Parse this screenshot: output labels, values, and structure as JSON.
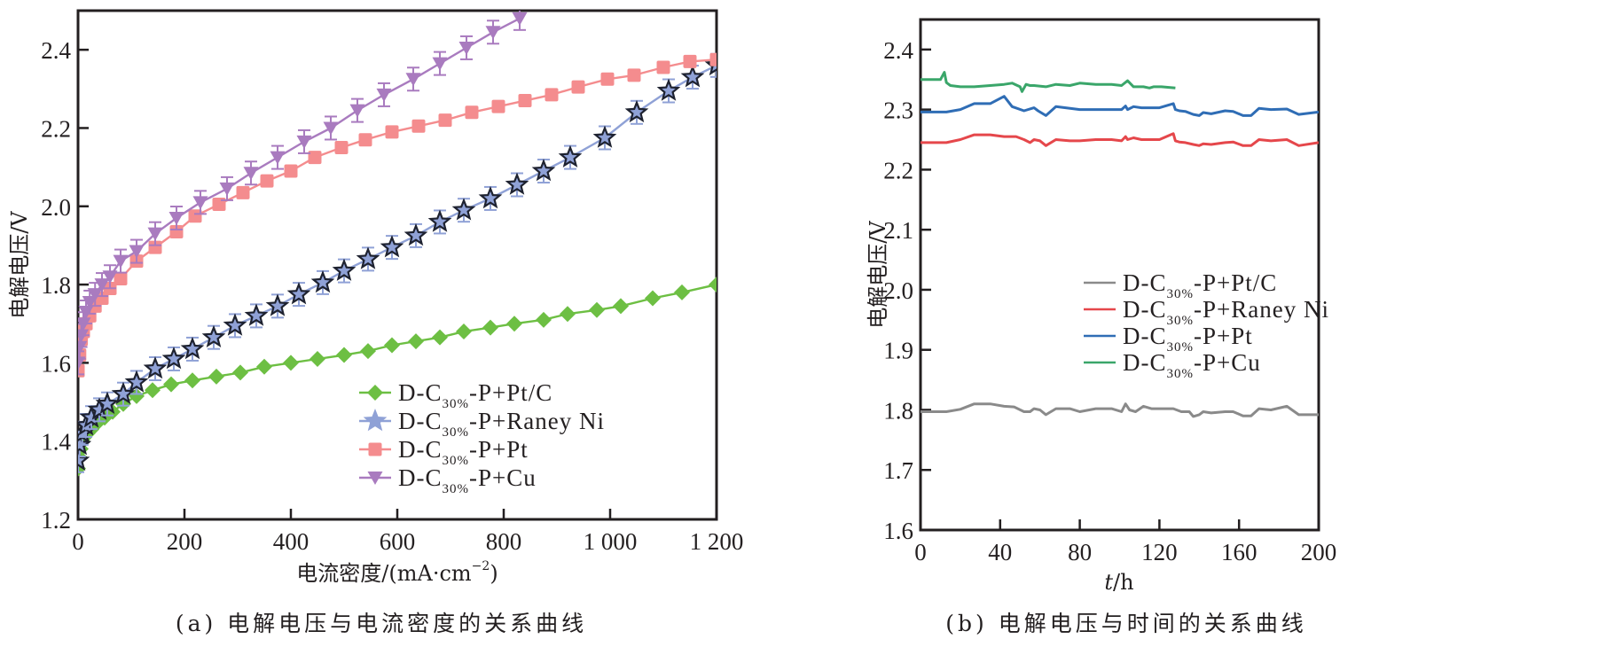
{
  "chart_data": [
    {
      "type": "line",
      "panel": "a",
      "caption": "(a) 电解电压与电流密度的关系曲线",
      "xlabel": "电流密度/(mA·cm⁻²)",
      "xlabel_parts": {
        "main": "电流密度/(mA·cm",
        "sup": "−2",
        "close": ")"
      },
      "ylabel": "电解电压/V",
      "xlim": [
        0,
        1200
      ],
      "ylim": [
        1.2,
        2.5
      ],
      "xticks": [
        0,
        200,
        400,
        600,
        800,
        1000,
        1200
      ],
      "xtick_labels": [
        "0",
        "200",
        "400",
        "600",
        "800",
        "1 000",
        "1 200"
      ],
      "yticks": [
        1.2,
        1.4,
        1.6,
        1.8,
        2.0,
        2.2,
        2.4
      ],
      "ytick_labels": [
        "1.2",
        "1.4",
        "1.6",
        "1.8",
        "2.0",
        "2.2",
        "2.4"
      ],
      "grid": false,
      "legend_position": "bottom-right",
      "series": [
        {
          "name": "D-C30%-P+Pt/C",
          "label_parts": {
            "pre": "D-C",
            "sub": "30%",
            "post": "-P+Pt/C"
          },
          "color": "#6dbf43",
          "marker": "diamond",
          "x": [
            0,
            2,
            5,
            8,
            12,
            18,
            25,
            35,
            50,
            65,
            85,
            110,
            140,
            175,
            215,
            260,
            305,
            350,
            400,
            450,
            500,
            545,
            590,
            635,
            680,
            725,
            775,
            820,
            875,
            920,
            975,
            1020,
            1080,
            1135,
            1200
          ],
          "y": [
            1.33,
            1.36,
            1.38,
            1.4,
            1.41,
            1.42,
            1.43,
            1.445,
            1.46,
            1.475,
            1.495,
            1.515,
            1.53,
            1.545,
            1.555,
            1.565,
            1.575,
            1.59,
            1.6,
            1.61,
            1.62,
            1.63,
            1.645,
            1.655,
            1.665,
            1.68,
            1.69,
            1.7,
            1.71,
            1.725,
            1.735,
            1.745,
            1.765,
            1.78,
            1.8
          ]
        },
        {
          "name": "D-C30%-P+Raney Ni",
          "label_parts": {
            "pre": "D-C",
            "sub": "30%",
            "post": "-P+Raney Ni"
          },
          "color": "#8fa1d6",
          "marker": "star",
          "marker_edge": "#1e2230",
          "x": [
            0,
            3,
            8,
            15,
            25,
            40,
            55,
            85,
            110,
            145,
            180,
            215,
            255,
            295,
            335,
            375,
            415,
            460,
            500,
            545,
            590,
            635,
            680,
            725,
            775,
            825,
            875,
            925,
            990,
            1050,
            1110,
            1155,
            1200
          ],
          "y": [
            1.35,
            1.39,
            1.42,
            1.44,
            1.46,
            1.48,
            1.495,
            1.52,
            1.55,
            1.585,
            1.61,
            1.635,
            1.665,
            1.695,
            1.72,
            1.745,
            1.775,
            1.805,
            1.835,
            1.865,
            1.895,
            1.925,
            1.96,
            1.99,
            2.02,
            2.055,
            2.09,
            2.125,
            2.175,
            2.24,
            2.295,
            2.33,
            2.36
          ]
        },
        {
          "name": "D-C30%-P+Pt",
          "label_parts": {
            "pre": "D-C",
            "sub": "30%",
            "post": "-P+Pt"
          },
          "color": "#f48c8e",
          "marker": "square",
          "x": [
            0,
            3,
            6,
            10,
            15,
            22,
            32,
            45,
            60,
            80,
            110,
            145,
            185,
            220,
            265,
            310,
            355,
            400,
            445,
            495,
            540,
            590,
            640,
            690,
            740,
            790,
            840,
            890,
            940,
            995,
            1045,
            1100,
            1150,
            1200
          ],
          "y": [
            1.58,
            1.62,
            1.66,
            1.68,
            1.7,
            1.72,
            1.745,
            1.765,
            1.79,
            1.815,
            1.86,
            1.895,
            1.935,
            1.975,
            2.005,
            2.035,
            2.065,
            2.09,
            2.125,
            2.15,
            2.17,
            2.19,
            2.205,
            2.22,
            2.24,
            2.255,
            2.27,
            2.285,
            2.305,
            2.325,
            2.335,
            2.355,
            2.37,
            2.375
          ]
        },
        {
          "name": "D-C30%-P+Cu",
          "label_parts": {
            "pre": "D-C",
            "sub": "30%",
            "post": "-P+Cu"
          },
          "color": "#a97bbf",
          "marker": "triangle-down",
          "x": [
            0,
            3,
            6,
            10,
            15,
            22,
            32,
            45,
            60,
            80,
            110,
            145,
            185,
            230,
            280,
            325,
            375,
            425,
            475,
            525,
            575,
            630,
            680,
            730,
            780,
            830
          ],
          "y": [
            1.6,
            1.64,
            1.67,
            1.7,
            1.73,
            1.755,
            1.775,
            1.8,
            1.82,
            1.86,
            1.885,
            1.93,
            1.97,
            2.01,
            2.045,
            2.085,
            2.125,
            2.165,
            2.2,
            2.245,
            2.285,
            2.325,
            2.365,
            2.405,
            2.445,
            2.48
          ]
        }
      ]
    },
    {
      "type": "line",
      "panel": "b",
      "caption": "(b) 电解电压与时间的关系曲线",
      "xlabel": "t/h",
      "xlabel_parts": {
        "italic": "t",
        "rest": "/h"
      },
      "ylabel": "电解电压/V",
      "xlim": [
        0,
        200
      ],
      "ylim": [
        1.6,
        2.45
      ],
      "xticks": [
        0,
        40,
        80,
        120,
        160,
        200
      ],
      "xtick_labels": [
        "0",
        "40",
        "80",
        "120",
        "160",
        "200"
      ],
      "yticks": [
        1.6,
        1.7,
        1.8,
        1.9,
        2.0,
        2.1,
        2.2,
        2.3,
        2.4
      ],
      "ytick_labels": [
        "1.6",
        "1.7",
        "1.8",
        "1.9",
        "2.0",
        "2.1",
        "2.2",
        "2.3",
        "2.4"
      ],
      "grid": false,
      "legend_position": "center-right",
      "series": [
        {
          "name": "D-C30%-P+Pt/C",
          "label_parts": {
            "pre": "D-C",
            "sub": "30%",
            "post": "-P+Pt/C"
          },
          "color": "#8a8a8a",
          "x": [
            0,
            13,
            20,
            27,
            35,
            42,
            47,
            52,
            55,
            57,
            60,
            63,
            68,
            75,
            80,
            88,
            96,
            101,
            103,
            105,
            108,
            112,
            116,
            121,
            127,
            131,
            135,
            137,
            140,
            142,
            146,
            153,
            157,
            162,
            166,
            170,
            176,
            184,
            190,
            200
          ],
          "y": [
            1.797,
            1.797,
            1.801,
            1.81,
            1.81,
            1.806,
            1.805,
            1.797,
            1.797,
            1.802,
            1.8,
            1.792,
            1.802,
            1.802,
            1.797,
            1.802,
            1.802,
            1.797,
            1.81,
            1.8,
            1.797,
            1.806,
            1.802,
            1.802,
            1.802,
            1.797,
            1.797,
            1.789,
            1.792,
            1.797,
            1.795,
            1.797,
            1.797,
            1.79,
            1.79,
            1.802,
            1.8,
            1.806,
            1.792,
            1.792
          ]
        },
        {
          "name": "D-C30%-P+Raney Ni",
          "label_parts": {
            "pre": "D-C",
            "sub": "30%",
            "post": "-P+Raney Ni"
          },
          "color": "#e5474b",
          "x": [
            0,
            13,
            20,
            27,
            35,
            42,
            48,
            52,
            55,
            57,
            60,
            63,
            68,
            75,
            80,
            88,
            96,
            101,
            103,
            104,
            107,
            111,
            115,
            120,
            127,
            128,
            130,
            133,
            137,
            140,
            142,
            146,
            153,
            157,
            162,
            166,
            170,
            176,
            184,
            190,
            200
          ],
          "y": [
            2.245,
            2.245,
            2.25,
            2.258,
            2.258,
            2.255,
            2.255,
            2.25,
            2.245,
            2.25,
            2.248,
            2.24,
            2.25,
            2.248,
            2.248,
            2.25,
            2.25,
            2.248,
            2.255,
            2.25,
            2.253,
            2.25,
            2.25,
            2.25,
            2.26,
            2.248,
            2.246,
            2.245,
            2.242,
            2.24,
            2.243,
            2.242,
            2.245,
            2.246,
            2.24,
            2.24,
            2.25,
            2.248,
            2.25,
            2.24,
            2.245
          ]
        },
        {
          "name": "D-C30%-P+Pt",
          "label_parts": {
            "pre": "D-C",
            "sub": "30%",
            "post": "-P+Pt"
          },
          "color": "#2f6db5",
          "x": [
            0,
            13,
            20,
            27,
            35,
            42,
            46,
            52,
            57,
            59,
            63,
            68,
            80,
            96,
            101,
            103,
            104,
            107,
            111,
            115,
            120,
            127,
            128,
            130,
            133,
            137,
            140,
            142,
            146,
            153,
            157,
            162,
            166,
            170,
            176,
            184,
            190,
            200
          ],
          "y": [
            2.296,
            2.296,
            2.3,
            2.31,
            2.31,
            2.322,
            2.305,
            2.298,
            2.303,
            2.298,
            2.29,
            2.305,
            2.3,
            2.3,
            2.3,
            2.306,
            2.3,
            2.305,
            2.303,
            2.303,
            2.303,
            2.31,
            2.3,
            2.298,
            2.297,
            2.292,
            2.29,
            2.295,
            2.293,
            2.298,
            2.297,
            2.29,
            2.29,
            2.302,
            2.3,
            2.301,
            2.292,
            2.296
          ]
        },
        {
          "name": "D-C30%-P+Cu",
          "label_parts": {
            "pre": "D-C",
            "sub": "30%",
            "post": "-P+Cu"
          },
          "color": "#3aa66a",
          "x": [
            0,
            10,
            12,
            13,
            15,
            20,
            27,
            35,
            42,
            46,
            50,
            51,
            53,
            55,
            57,
            63,
            68,
            75,
            80,
            88,
            96,
            101,
            104,
            107,
            112,
            115,
            117,
            121,
            128
          ],
          "y": [
            2.35,
            2.35,
            2.362,
            2.345,
            2.34,
            2.338,
            2.338,
            2.34,
            2.342,
            2.344,
            2.338,
            2.33,
            2.342,
            2.34,
            2.34,
            2.338,
            2.342,
            2.34,
            2.344,
            2.342,
            2.342,
            2.34,
            2.348,
            2.338,
            2.338,
            2.336,
            2.338,
            2.338,
            2.336
          ]
        }
      ]
    }
  ]
}
